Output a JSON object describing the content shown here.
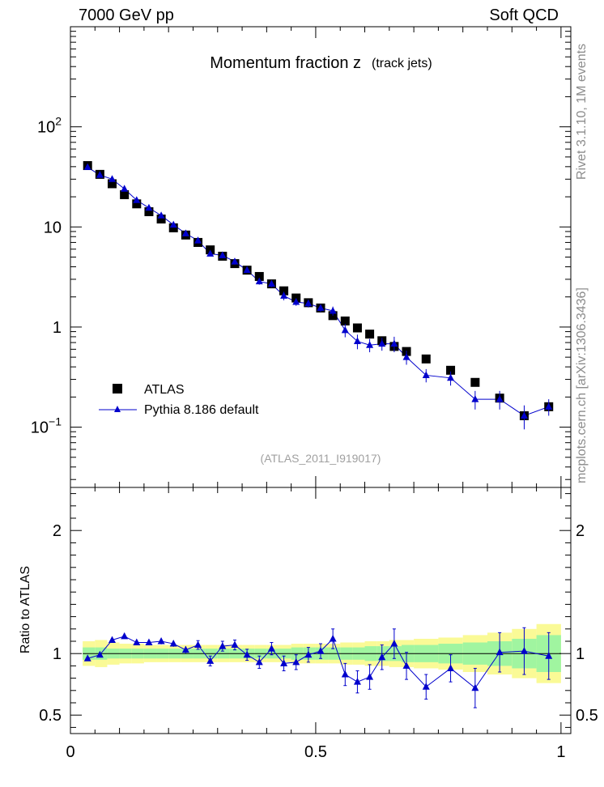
{
  "header": {
    "left": "7000 GeV pp",
    "right": "Soft QCD"
  },
  "side_labels": {
    "upper": "Rivet 3.1.10, 1M events",
    "lower": "mcplots.cern.ch [arXiv:1306.3436]"
  },
  "colors": {
    "atlas": "#000000",
    "pythia": "#0000cc",
    "band_inner": "#a0f5a0",
    "band_outer": "#fafa96",
    "watermark": "#a0a0a0"
  },
  "chart_data": [
    {
      "type": "scatter",
      "title": "Momentum fraction z",
      "subtitle": "(track jets)",
      "watermark": "(ATLAS_2011_I919017)",
      "xlabel": "",
      "ylabel": "",
      "xlim": [
        0,
        1.02
      ],
      "ylim": [
        0.025,
        1000
      ],
      "log_y": true,
      "yticks": [
        {
          "v": 0.1,
          "mant": "10",
          "exp": "−1"
        },
        {
          "v": 1,
          "label": "1"
        },
        {
          "v": 10,
          "label": "10"
        },
        {
          "v": 100,
          "mant": "10",
          "exp": "2"
        }
      ],
      "legend": {
        "placement": "lower-left",
        "entries": [
          "ATLAS",
          "Pythia 8.186 default"
        ]
      },
      "x": [
        0.035,
        0.06,
        0.085,
        0.11,
        0.135,
        0.16,
        0.185,
        0.21,
        0.235,
        0.26,
        0.285,
        0.31,
        0.335,
        0.36,
        0.385,
        0.41,
        0.435,
        0.46,
        0.485,
        0.51,
        0.535,
        0.56,
        0.585,
        0.61,
        0.635,
        0.66,
        0.685,
        0.725,
        0.775,
        0.825,
        0.875,
        0.925,
        0.975
      ],
      "series": [
        {
          "name": "ATLAS",
          "marker": "square",
          "values": [
            41,
            33.5,
            27,
            21,
            17,
            14.2,
            12,
            9.8,
            8.3,
            7.0,
            5.9,
            5.1,
            4.3,
            3.7,
            3.2,
            2.7,
            2.3,
            1.95,
            1.75,
            1.55,
            1.3,
            1.15,
            0.98,
            0.85,
            0.73,
            0.64,
            0.57,
            0.48,
            0.37,
            0.28,
            0.195,
            0.13,
            0.16
          ]
        },
        {
          "name": "Pythia 8.186 default",
          "marker": "triangle",
          "values": [
            39.5,
            33,
            30,
            24,
            18.5,
            15.5,
            13,
            10.5,
            8.6,
            7.3,
            5.4,
            5.2,
            4.5,
            3.7,
            2.85,
            2.7,
            2.05,
            1.78,
            1.72,
            1.55,
            1.45,
            0.93,
            0.72,
            0.66,
            0.68,
            0.68,
            0.5,
            0.33,
            0.31,
            0.19,
            0.19,
            0.13,
            0.16
          ],
          "err": [
            1.2,
            0.8,
            0.8,
            0.8,
            0.7,
            0.6,
            0.6,
            0.5,
            0.4,
            0.4,
            0.3,
            0.3,
            0.3,
            0.2,
            0.2,
            0.2,
            0.2,
            0.15,
            0.15,
            0.13,
            0.15,
            0.14,
            0.12,
            0.1,
            0.1,
            0.12,
            0.08,
            0.05,
            0.05,
            0.04,
            0.04,
            0.035,
            0.03
          ]
        }
      ]
    },
    {
      "type": "scatter",
      "title": "",
      "xlabel": "",
      "ylabel": "Ratio to ATLAS",
      "xlim": [
        0,
        1.02
      ],
      "ylim": [
        0.35,
        2.35
      ],
      "log_y": false,
      "yticks": [
        0.5,
        1,
        2
      ],
      "xticks": [
        0,
        0.5,
        1
      ],
      "band_edges": [
        0.025,
        0.05,
        0.075,
        0.1,
        0.125,
        0.15,
        0.175,
        0.2,
        0.225,
        0.25,
        0.275,
        0.3,
        0.325,
        0.35,
        0.375,
        0.4,
        0.425,
        0.45,
        0.475,
        0.5,
        0.525,
        0.55,
        0.575,
        0.6,
        0.625,
        0.65,
        0.675,
        0.7,
        0.75,
        0.8,
        0.85,
        0.9,
        0.95,
        1.0
      ],
      "band_inner": [
        0.05,
        0.05,
        0.04,
        0.04,
        0.04,
        0.04,
        0.04,
        0.04,
        0.04,
        0.04,
        0.04,
        0.04,
        0.04,
        0.04,
        0.04,
        0.04,
        0.04,
        0.05,
        0.05,
        0.05,
        0.05,
        0.05,
        0.05,
        0.06,
        0.06,
        0.06,
        0.07,
        0.07,
        0.08,
        0.09,
        0.1,
        0.12,
        0.15
      ],
      "band_outer": [
        0.1,
        0.11,
        0.09,
        0.08,
        0.08,
        0.07,
        0.07,
        0.07,
        0.07,
        0.07,
        0.07,
        0.07,
        0.07,
        0.07,
        0.07,
        0.07,
        0.07,
        0.08,
        0.08,
        0.08,
        0.08,
        0.09,
        0.09,
        0.1,
        0.1,
        0.11,
        0.11,
        0.12,
        0.13,
        0.15,
        0.17,
        0.2,
        0.24
      ],
      "series": [
        {
          "name": "Pythia 8.186 default",
          "marker": "triangle",
          "values": [
            0.96,
            0.99,
            1.11,
            1.14,
            1.09,
            1.09,
            1.1,
            1.08,
            1.03,
            1.07,
            0.94,
            1.06,
            1.07,
            0.99,
            0.93,
            1.04,
            0.92,
            0.93,
            0.99,
            1.02,
            1.12,
            0.83,
            0.77,
            0.81,
            0.97,
            1.08,
            0.9,
            0.73,
            0.88,
            0.72,
            1.01,
            1.02,
            0.98
          ],
          "err": [
            0.015,
            0.015,
            0.015,
            0.02,
            0.02,
            0.02,
            0.025,
            0.025,
            0.03,
            0.035,
            0.04,
            0.04,
            0.04,
            0.045,
            0.05,
            0.05,
            0.06,
            0.06,
            0.06,
            0.06,
            0.08,
            0.09,
            0.09,
            0.1,
            0.1,
            0.12,
            0.11,
            0.1,
            0.11,
            0.16,
            0.16,
            0.19,
            0.19
          ]
        }
      ]
    }
  ]
}
